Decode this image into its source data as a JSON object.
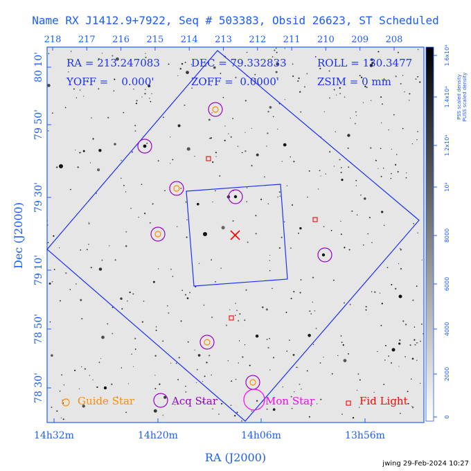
{
  "title": "Name RX J1412.9+7922, Seq # 503383, Obsid 26623, ST Scheduled",
  "top_axis_ticks": [
    "218",
    "217",
    "216",
    "215",
    "214",
    "213",
    "212",
    "211",
    "210",
    "209",
    "208"
  ],
  "info": {
    "ra": "RA = 213.247083",
    "dec": "DEC = 79.332833",
    "roll": "ROLL = 130.3477",
    "yoff": "YOFF =    0.000'",
    "zoff": "ZOFF =  0.0000'",
    "zsim": "ZSIM = 0 mm"
  },
  "dec_ticks": [
    "80 10'",
    "79 50'",
    "79 30'",
    "79 10'",
    "78 50'",
    "78 30'"
  ],
  "ra_ticks": [
    "14h32m",
    "14h20m",
    "14h06m",
    "13h56m"
  ],
  "ylabel": "Dec (J2000)",
  "xlabel": "RA (J2000)",
  "colorbar": {
    "label_line1": "PSS scaled density",
    "label_line2": "PUSS scaled density",
    "ticks": [
      "0",
      "2000",
      "4000",
      "6000",
      "8000",
      "10⁴",
      "1.2x10⁴",
      "1.4x10⁴",
      "1.6x10⁴"
    ]
  },
  "legend": {
    "guide": "Guide Star",
    "acq": "Acq Star",
    "mon": "Mon Star",
    "fid": "Fid Light"
  },
  "footer": "jwing 29-Feb-2024 10:27",
  "colors": {
    "axis_blue": "#1a5cff",
    "guide": "#ff8c00",
    "acq": "#9900cc",
    "mon": "#ff00ff",
    "fid": "#ff0000",
    "target_x": "#ff0000",
    "fov": "#1a2fff"
  }
}
